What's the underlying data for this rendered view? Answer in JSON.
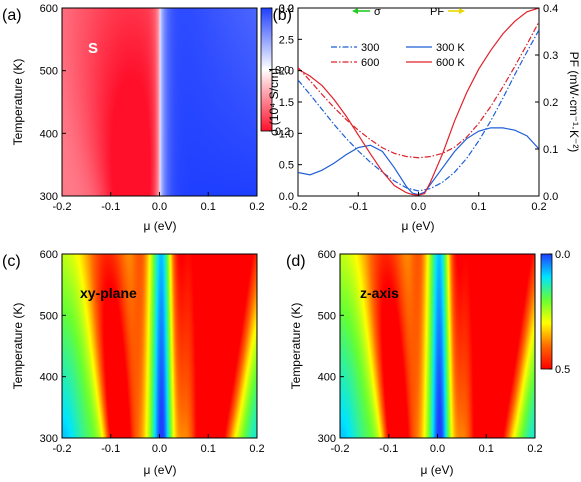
{
  "chart_data": [
    {
      "panel_label": "(a)",
      "type": "heatmap",
      "annotation": "S",
      "xlabel": "μ (eV)",
      "ylabel": "Temperature (K)",
      "xlim": [
        -0.2,
        0.2
      ],
      "ylim": [
        300,
        600
      ],
      "xticks": [
        "-0.2",
        "-0.1",
        "0.0",
        "0.1",
        "0.2"
      ],
      "yticks": [
        "300",
        "400",
        "500",
        "600"
      ],
      "colorbar": {
        "ticks": [
          "-0.2",
          "0.0",
          "0.2"
        ],
        "range": [
          -0.2,
          0.2
        ],
        "top_color": "#1f3fff",
        "mid_color": "#ffffff",
        "bottom_color": "#ff0f2a"
      },
      "grid": false
    },
    {
      "panel_label": "(b)",
      "type": "line",
      "xlabel": "μ (eV)",
      "ylabel": "σ (10⁴ S/cm)",
      "ylabel_right": "PF (mW·cm⁻¹·K⁻²)",
      "xlim": [
        -0.2,
        0.2
      ],
      "ylim": [
        0,
        3.0
      ],
      "ylim_right": [
        0,
        0.4
      ],
      "xticks": [
        "-0.2",
        "-0.1",
        "0.0",
        "0.1",
        "0.2"
      ],
      "yticks": [
        "0.0",
        "0.5",
        "1.0",
        "1.5",
        "2.0",
        "2.5",
        "3.0"
      ],
      "yticks_right": [
        "0.0",
        "0.1",
        "0.2",
        "0.3",
        "0.4"
      ],
      "legend": {
        "placement": "top",
        "group_sigma": "σ",
        "group_pf": "PF",
        "sigma_arrow_color": "#22cc22",
        "pf_arrow_color": "#e6d800"
      },
      "grid": false,
      "series": [
        {
          "name": "300",
          "axis": "left",
          "style": "dashdot",
          "color": "#1f5fd6",
          "x": [
            -0.2,
            -0.18,
            -0.16,
            -0.14,
            -0.12,
            -0.1,
            -0.08,
            -0.06,
            -0.04,
            -0.02,
            0,
            0.02,
            0.04,
            0.06,
            0.08,
            0.1,
            0.12,
            0.14,
            0.16,
            0.18,
            0.2
          ],
          "y": [
            1.85,
            1.62,
            1.38,
            1.14,
            0.92,
            0.72,
            0.54,
            0.38,
            0.24,
            0.13,
            0.08,
            0.12,
            0.22,
            0.38,
            0.6,
            0.88,
            1.2,
            1.56,
            1.94,
            2.3,
            2.65
          ]
        },
        {
          "name": "600",
          "axis": "left",
          "style": "dashdot",
          "color": "#e0202a",
          "x": [
            -0.2,
            -0.18,
            -0.16,
            -0.14,
            -0.12,
            -0.1,
            -0.08,
            -0.06,
            -0.04,
            -0.02,
            0,
            0.02,
            0.04,
            0.06,
            0.08,
            0.1,
            0.12,
            0.14,
            0.16,
            0.18,
            0.2
          ],
          "y": [
            2.05,
            1.84,
            1.62,
            1.41,
            1.22,
            1.05,
            0.9,
            0.77,
            0.68,
            0.63,
            0.61,
            0.63,
            0.68,
            0.78,
            0.94,
            1.16,
            1.43,
            1.74,
            2.07,
            2.42,
            2.78
          ]
        },
        {
          "name": "300 K",
          "axis": "right",
          "style": "solid",
          "color": "#1f5fd6",
          "x": [
            -0.2,
            -0.18,
            -0.16,
            -0.14,
            -0.12,
            -0.1,
            -0.08,
            -0.06,
            -0.04,
            -0.02,
            -0.01,
            0,
            0.01,
            0.02,
            0.04,
            0.06,
            0.08,
            0.1,
            0.12,
            0.14,
            0.16,
            0.18,
            0.2
          ],
          "y": [
            0.05,
            0.045,
            0.055,
            0.07,
            0.088,
            0.103,
            0.108,
            0.095,
            0.06,
            0.02,
            0.006,
            0.003,
            0.008,
            0.025,
            0.06,
            0.095,
            0.122,
            0.138,
            0.145,
            0.145,
            0.14,
            0.128,
            0.1
          ]
        },
        {
          "name": "600 K",
          "axis": "right",
          "style": "solid",
          "color": "#e0202a",
          "x": [
            -0.2,
            -0.18,
            -0.16,
            -0.14,
            -0.12,
            -0.1,
            -0.08,
            -0.06,
            -0.04,
            -0.02,
            -0.01,
            0,
            0.01,
            0.02,
            0.04,
            0.06,
            0.08,
            0.1,
            0.12,
            0.14,
            0.16,
            0.18,
            0.2
          ],
          "y": [
            0.27,
            0.255,
            0.235,
            0.205,
            0.17,
            0.13,
            0.09,
            0.052,
            0.022,
            0.007,
            0.003,
            0.002,
            0.005,
            0.03,
            0.09,
            0.16,
            0.22,
            0.27,
            0.31,
            0.345,
            0.372,
            0.392,
            0.4
          ]
        }
      ]
    },
    {
      "panel_label": "(c)",
      "type": "heatmap",
      "annotation": "xy-plane",
      "xlabel": "μ (eV)",
      "ylabel": "Temperature (K)",
      "xlim": [
        -0.2,
        0.2
      ],
      "ylim": [
        300,
        600
      ],
      "xticks": [
        "-0.2",
        "-0.1",
        "0.0",
        "0.1",
        "0.2"
      ],
      "yticks": [
        "300",
        "400",
        "500",
        "600"
      ],
      "grid": false
    },
    {
      "panel_label": "(d)",
      "type": "heatmap",
      "annotation": "z-axis",
      "xlabel": "μ (eV)",
      "ylabel": "Temperature (K)",
      "xlim": [
        -0.2,
        0.2
      ],
      "ylim": [
        300,
        600
      ],
      "xticks": [
        "-0.2",
        "-0.1",
        "0.0",
        "0.1",
        "0.2"
      ],
      "yticks": [
        "300",
        "400",
        "500",
        "600"
      ],
      "colorbar": {
        "ticks": [
          "0.0",
          "0.5"
        ],
        "range": [
          0.0,
          0.5
        ],
        "colors": [
          "#1f3fff",
          "#00e5ff",
          "#66ff33",
          "#ffff00",
          "#ff6a00",
          "#ff0000"
        ]
      },
      "grid": false
    }
  ]
}
